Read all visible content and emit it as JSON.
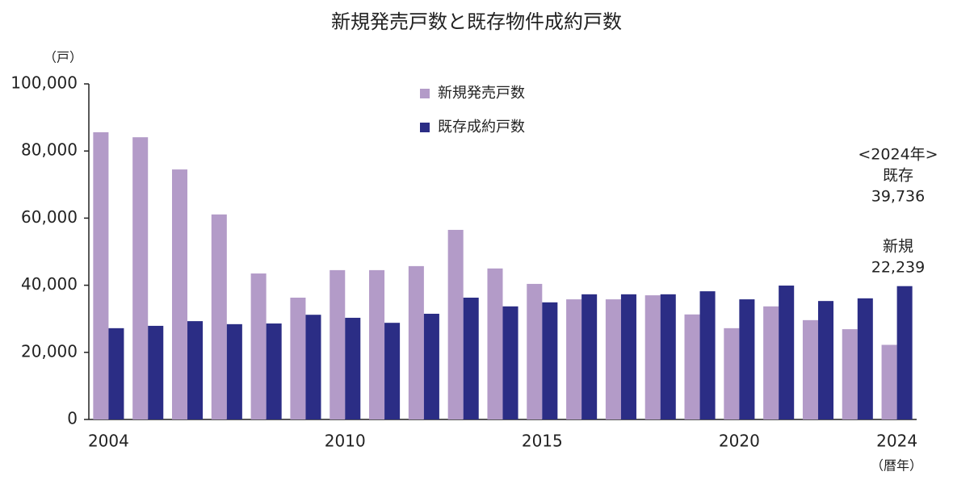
{
  "chart_data": {
    "type": "bar",
    "title": "新規発売戸数と既存物件成約戸数",
    "y_label": "（戸）",
    "x_label": "（暦年）",
    "categories": [
      "2004",
      null,
      null,
      null,
      null,
      null,
      "2010",
      null,
      null,
      null,
      null,
      "2015",
      null,
      null,
      null,
      null,
      "2020",
      null,
      null,
      null,
      "2024"
    ],
    "series": [
      {
        "name": "新規発売戸数",
        "color": "#b39bc8",
        "values": [
          85600,
          84100,
          74500,
          61100,
          43500,
          36300,
          44500,
          44500,
          45700,
          56500,
          45000,
          40400,
          35800,
          35800,
          37000,
          31300,
          27200,
          33700,
          29600,
          26900,
          22239
        ]
      },
      {
        "name": "既存成約戸数",
        "color": "#2b2d85",
        "values": [
          27200,
          27900,
          29300,
          28400,
          28600,
          31200,
          30300,
          28800,
          31500,
          36300,
          33700,
          34900,
          37300,
          37300,
          37300,
          38200,
          35800,
          39900,
          35300,
          36100,
          39736
        ]
      }
    ],
    "annotations": [
      "<2024年>",
      "既存",
      "39,736",
      "新規",
      "22,239"
    ],
    "ylim": [
      0,
      100000
    ],
    "yticks": [
      0,
      {
        "value": 20000,
        "label": "20,000"
      },
      {
        "value": 40000,
        "label": "40,000"
      },
      {
        "value": 60000,
        "label": "60,000"
      },
      {
        "value": 80000,
        "label": "80,000"
      },
      {
        "value": 100000,
        "label": "100,000"
      }
    ],
    "grid": false
  }
}
